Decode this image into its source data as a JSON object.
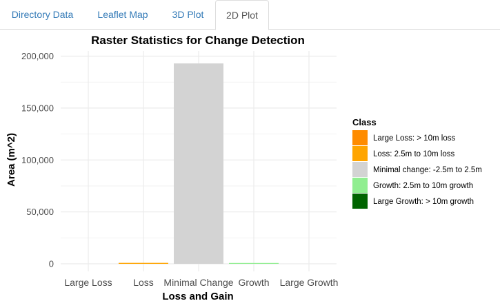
{
  "tabs": [
    {
      "label": "Directory Data",
      "active": false
    },
    {
      "label": "Leaflet Map",
      "active": false
    },
    {
      "label": "3D Plot",
      "active": false
    },
    {
      "label": "2D Plot",
      "active": true
    }
  ],
  "chart_data": {
    "type": "bar",
    "title": "Raster Statistics for Change Detection",
    "xlabel": "Loss and Gain",
    "ylabel": "Area (m^2)",
    "categories": [
      "Large Loss",
      "Loss",
      "Minimal Change",
      "Growth",
      "Large Growth"
    ],
    "values": [
      0,
      900,
      193000,
      600,
      0
    ],
    "ylim": [
      0,
      205000
    ],
    "yticks": [
      0,
      50000,
      100000,
      150000,
      200000
    ],
    "ytick_labels": [
      "0",
      "50,000",
      "100,000",
      "150,000",
      "200,000"
    ],
    "grid": true,
    "legend": {
      "title": "Class",
      "position": "right",
      "entries": [
        {
          "label": "Large Loss: > 10m loss",
          "color": "#ff8c00"
        },
        {
          "label": "Loss: 2.5m to 10m loss",
          "color": "#ffa500"
        },
        {
          "label": "Minimal change: -2.5m to 2.5m",
          "color": "#d3d3d3"
        },
        {
          "label": "Growth: 2.5m to 10m growth",
          "color": "#90ee90"
        },
        {
          "label": "Large Growth: > 10m growth",
          "color": "#006400"
        }
      ]
    },
    "bar_colors": [
      "#ff8c00",
      "#ffa500",
      "#d3d3d3",
      "#90ee90",
      "#006400"
    ]
  }
}
